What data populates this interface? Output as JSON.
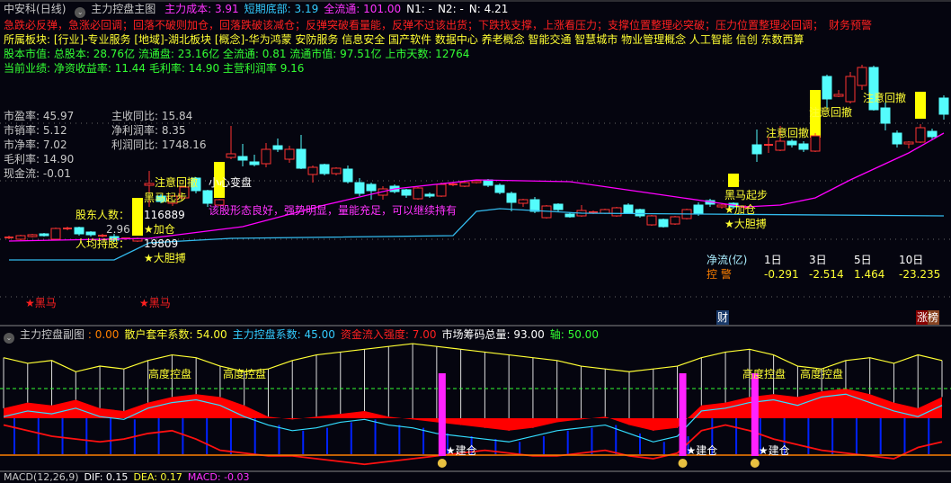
{
  "header": {
    "stock": "中安科",
    "period": "(日线)",
    "indicator": "主力控盘主图",
    "items": [
      {
        "label": "主力成本",
        "value": "3.91",
        "color": "mag"
      },
      {
        "label": "短期底部",
        "value": "3.19",
        "color": "cy"
      },
      {
        "label": "全流通",
        "value": "101.00",
        "color": "mag"
      },
      {
        "label": "N1",
        "value": "-",
        "color": "wht"
      },
      {
        "label": "N2",
        "value": "-",
        "color": "wht"
      },
      {
        "label": "N",
        "value": "4.21",
        "color": "wht"
      }
    ]
  },
  "advice": "急跌必反弹，急涨必回调；回落不破则加仓，回落跌破该减仓；反弹突破看量能，反弹不过该出货；下跌找支撑，上涨看压力；支撑位置整理必突破；压力位置整理必回调；",
  "advice_overlay": "财务预警",
  "sector": "所属板块: [行业]-专业服务 [地域]-湖北板块 [概念]-华为鸿蒙 安防服务 信息安全 国产软件 数据中心 养老概念 智能交通 智慧城市 物业管理概念 人工智能 信创 东数西算",
  "market_value": "股本市值: 总股本: 28.76亿 流通盘: 23.16亿 全流通: 0.81 流通市值: 97.51亿 上市天数: 12764",
  "performance": "当前业绩:  净资收益率: 11.44 毛利率: 14.90 主营利润率 9.16",
  "flow": {
    "label": "净流(亿)",
    "periods": [
      {
        "label": "1日",
        "value": "-0.291"
      },
      {
        "label": "3日",
        "value": "-2.514"
      },
      {
        "label": "5日",
        "value": "1.464"
      },
      {
        "label": "10日",
        "value": "-23.235"
      }
    ],
    "warn": "控 警"
  },
  "ratios_left": [
    "市盈率: 45.97",
    "市销率: 5.12",
    "市净率: 7.02",
    "毛利率: 14.90",
    "现金流: -0.01"
  ],
  "ratios_right": [
    "主收同比: 15.84",
    "净利润率: 8.35",
    "利润同比: 1748.16"
  ],
  "annotations": {
    "attention": "注意回撤",
    "change": "小心变盘",
    "shareholders_label": "股东人数：",
    "shareholders": "116889",
    "per_holder_label": "人均持股：",
    "per_holder": "19809",
    "low_price": "2.96",
    "start": "黑马起步",
    "add": "★加仓",
    "bold": "★大胆搏",
    "blackhorse": "★黑马",
    "comment": "该股形态良好，强势明显，量能充足，可以继续持有",
    "cai": "财",
    "zhangbang": "涨榜"
  },
  "sub": {
    "title": "主力控盘副图",
    "items": [
      {
        "label": "",
        "value": ": 0.00",
        "color": "org"
      },
      {
        "label": "散户套牢系数",
        "value": "54.00",
        "color": "yel"
      },
      {
        "label": "主力控盘系数",
        "value": "45.00",
        "color": "cy"
      },
      {
        "label": "资金流入强度",
        "value": "7.00",
        "color": "red"
      },
      {
        "label": "市场筹码总量",
        "value": "93.00",
        "color": "wht"
      },
      {
        "label": "轴",
        "value": "50.00",
        "color": "grn"
      }
    ],
    "high_control": "高度控盘",
    "build": "建仓"
  },
  "macd": {
    "label": "MACD(12,26,9)",
    "dif": "DIF: 0.15",
    "dea": "DEA: 0.17",
    "macd": "MACD: -0.03"
  },
  "colors": {
    "up": "#ff3232",
    "down": "#54fcfc",
    "ma": "#ff00ff",
    "support": "#33bbee",
    "marker": "#ffff00"
  },
  "chart_data": {
    "type": "candlestick",
    "candles": [
      [
        2.72,
        2.72,
        2.76,
        2.68
      ],
      [
        2.68,
        2.76,
        2.78,
        2.66
      ],
      [
        2.74,
        2.78,
        2.8,
        2.72
      ],
      [
        2.8,
        2.76,
        2.82,
        2.74
      ],
      [
        2.68,
        2.92,
        2.94,
        2.66
      ],
      [
        2.92,
        2.92,
        2.96,
        2.88
      ],
      [
        2.94,
        2.8,
        2.96,
        2.76
      ],
      [
        2.84,
        2.78,
        2.86,
        2.74
      ],
      [
        2.76,
        2.76,
        2.8,
        2.72
      ],
      [
        2.74,
        2.66,
        2.8,
        2.62
      ],
      [
        2.68,
        2.7,
        2.72,
        2.66
      ],
      [
        2.64,
        2.7,
        2.72,
        2.62
      ],
      [
        3.88,
        3.92,
        4.2,
        3.4
      ],
      [
        3.64,
        3.52,
        3.68,
        3.48
      ],
      [
        3.48,
        3.64,
        3.66,
        3.42
      ],
      [
        3.6,
        3.84,
        3.86,
        3.58
      ],
      [
        4.04,
        3.76,
        4.06,
        3.7
      ],
      [
        3.76,
        3.48,
        3.78,
        3.4
      ],
      [
        3.44,
        3.56,
        3.58,
        3.42
      ],
      [
        4.5,
        4.58,
        5.2,
        4.46
      ],
      [
        4.52,
        4.44,
        4.8,
        4.3
      ],
      [
        4.4,
        4.34,
        4.56,
        4.3
      ],
      [
        4.36,
        4.68,
        4.82,
        4.28
      ],
      [
        4.76,
        4.68,
        4.92,
        4.62
      ],
      [
        4.46,
        4.68,
        4.76,
        4.38
      ],
      [
        4.68,
        4.26,
        5.0,
        4.24
      ],
      [
        4.12,
        4.28,
        4.32,
        3.94
      ],
      [
        4.34,
        4.14,
        4.36,
        4.1
      ],
      [
        4.14,
        4.26,
        4.28,
        4.1
      ],
      [
        4.24,
        3.96,
        4.32,
        3.92
      ],
      [
        3.94,
        3.7,
        4.04,
        3.64
      ],
      [
        3.9,
        3.76,
        3.94,
        3.56
      ],
      [
        3.66,
        3.8,
        3.86,
        3.56
      ],
      [
        3.86,
        3.74,
        3.9,
        3.7
      ],
      [
        3.78,
        3.66,
        3.8,
        3.6
      ],
      [
        3.58,
        3.82,
        3.84,
        3.56
      ],
      [
        3.68,
        3.64,
        3.72,
        3.6
      ],
      [
        3.64,
        3.9,
        3.94,
        3.62
      ],
      [
        3.9,
        3.9,
        3.96,
        3.86
      ],
      [
        3.86,
        3.94,
        3.96,
        3.84
      ],
      [
        3.94,
        3.98,
        4.0,
        3.92
      ],
      [
        4.0,
        3.88,
        4.02,
        3.84
      ],
      [
        3.88,
        3.72,
        3.92,
        3.68
      ],
      [
        3.7,
        3.5,
        3.74,
        3.3
      ],
      [
        3.48,
        3.56,
        3.58,
        3.4
      ],
      [
        3.56,
        3.3,
        3.62,
        3.26
      ],
      [
        3.16,
        3.42,
        3.44,
        3.14
      ],
      [
        3.46,
        3.34,
        3.48,
        3.3
      ],
      [
        3.24,
        3.18,
        3.28,
        3.16
      ],
      [
        3.2,
        3.32,
        3.44,
        3.18
      ],
      [
        3.28,
        3.28,
        3.32,
        3.24
      ],
      [
        3.26,
        3.34,
        3.36,
        3.24
      ],
      [
        3.2,
        3.38,
        3.4,
        3.18
      ],
      [
        3.44,
        3.26,
        3.48,
        3.24
      ],
      [
        3.34,
        3.2,
        3.36,
        3.16
      ],
      [
        3.0,
        3.2,
        3.22,
        2.98
      ],
      [
        3.12,
        2.96,
        3.14,
        2.94
      ],
      [
        3.02,
        3.18,
        3.2,
        3.0
      ],
      [
        3.14,
        3.34,
        3.36,
        3.12
      ],
      [
        3.44,
        3.24,
        3.5,
        3.2
      ],
      [
        3.54,
        3.46,
        3.58,
        3.4
      ],
      [
        3.4,
        3.44,
        3.46,
        3.36
      ],
      [
        3.48,
        3.4,
        3.5,
        3.36
      ],
      [
        3.4,
        3.4,
        3.44,
        3.34
      ],
      [
        4.78,
        4.58,
        5.12,
        4.4
      ],
      [
        4.78,
        4.78,
        4.96,
        4.6
      ],
      [
        4.66,
        4.86,
        5.2,
        4.64
      ],
      [
        4.86,
        4.78,
        4.9,
        4.72
      ],
      [
        4.8,
        4.68,
        4.86,
        4.62
      ],
      [
        4.64,
        4.98,
        5.04,
        4.62
      ],
      [
        6.3,
        5.8,
        6.34,
        5.6
      ],
      [
        5.86,
        5.9,
        6.0,
        5.84
      ],
      [
        5.74,
        6.3,
        6.4,
        5.7
      ],
      [
        6.1,
        6.5,
        6.56,
        6.0
      ],
      [
        6.5,
        5.56,
        6.54,
        5.54
      ],
      [
        5.6,
        5.26,
        5.72,
        5.1
      ],
      [
        5.04,
        4.8,
        5.1,
        4.72
      ],
      [
        4.8,
        4.84,
        4.86,
        4.7
      ],
      [
        4.84,
        5.16,
        5.24,
        4.82
      ],
      [
        5.08,
        4.96,
        5.14,
        4.9
      ],
      [
        5.82,
        5.46,
        5.88,
        5.34
      ]
    ],
    "markers": [
      {
        "index": 12,
        "top": 3.6,
        "bottom": 2.76
      },
      {
        "index": 19,
        "top": 4.4,
        "bottom": 3.6
      },
      {
        "index": 63,
        "top": 4.14,
        "bottom": 3.84
      },
      {
        "index": 70,
        "top": 6.0,
        "bottom": 4.94
      },
      {
        "index": 79,
        "top": 5.96,
        "bottom": 5.36
      }
    ],
    "ma_line": [
      [
        0,
        2.64
      ],
      [
        12,
        2.7
      ],
      [
        20,
        2.96
      ],
      [
        27,
        3.44
      ],
      [
        33,
        3.8
      ],
      [
        40,
        4.0
      ],
      [
        48,
        3.96
      ],
      [
        55,
        3.7
      ],
      [
        63,
        3.4
      ],
      [
        66,
        3.44
      ],
      [
        69,
        3.6
      ],
      [
        72,
        4.0
      ],
      [
        77,
        4.6
      ],
      [
        80,
        5.04
      ]
    ],
    "support_line": [
      [
        0,
        2.22
      ],
      [
        9,
        2.22
      ],
      [
        12,
        2.6
      ],
      [
        19,
        2.7
      ],
      [
        38,
        2.76
      ],
      [
        40,
        3.3
      ],
      [
        42,
        3.36
      ],
      [
        49,
        3.26
      ],
      [
        80,
        3.2
      ]
    ],
    "sub_axis": 50,
    "sub_yellow": [
      72,
      68,
      70,
      62,
      66,
      64,
      70,
      74,
      72,
      66,
      62,
      64,
      70,
      74,
      76,
      78,
      80,
      82,
      80,
      78,
      76,
      74,
      72,
      70,
      66,
      64,
      62,
      64,
      66,
      72,
      76,
      78,
      74,
      66,
      64,
      70,
      72,
      68,
      74,
      70
    ],
    "sub_red_area": [
      36,
      40,
      38,
      42,
      36,
      34,
      40,
      44,
      46,
      44,
      38,
      30,
      28,
      30,
      32,
      34,
      30,
      28,
      26,
      24,
      22,
      20,
      22,
      26,
      28,
      30,
      24,
      20,
      22,
      38,
      40,
      44,
      46,
      44,
      48,
      50,
      46,
      40,
      36,
      44
    ],
    "sub_cyan": [
      30,
      34,
      32,
      36,
      30,
      28,
      36,
      40,
      42,
      38,
      30,
      24,
      20,
      22,
      26,
      28,
      24,
      22,
      18,
      16,
      14,
      12,
      16,
      20,
      22,
      24,
      18,
      12,
      16,
      34,
      36,
      40,
      42,
      38,
      44,
      46,
      40,
      34,
      30,
      38
    ],
    "sub_red_line": [
      24,
      20,
      16,
      14,
      12,
      14,
      18,
      20,
      14,
      6,
      4,
      2,
      2,
      0,
      -2,
      -4,
      -2,
      0,
      2,
      4,
      6,
      4,
      2,
      2,
      4,
      6,
      2,
      0,
      4,
      20,
      24,
      20,
      14,
      10,
      6,
      4,
      2,
      0,
      8,
      12
    ],
    "build_points": [
      18,
      28,
      31
    ]
  }
}
